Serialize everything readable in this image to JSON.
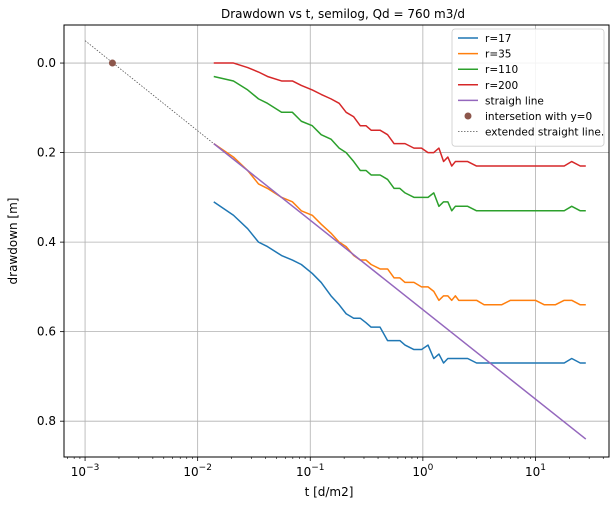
{
  "chart_data": {
    "type": "line",
    "title": "Drawdown vs t, semilog, Qd = 760 m3/d",
    "xlabel": "t [d/m2]",
    "ylabel": "drawdown [m]",
    "xscale": "log",
    "xlim": [
      0.00065,
      45
    ],
    "ylim": [
      0.88,
      -0.085
    ],
    "y_inverted": true,
    "grid": true,
    "legend_position": "upper right",
    "x_ticks": [
      {
        "value": 0.001,
        "base": "10",
        "exp": "−3"
      },
      {
        "value": 0.01,
        "base": "10",
        "exp": "−2"
      },
      {
        "value": 0.1,
        "base": "10",
        "exp": "−1"
      },
      {
        "value": 1,
        "base": "10",
        "exp": "0"
      },
      {
        "value": 10,
        "base": "10",
        "exp": "1"
      }
    ],
    "y_ticks": [
      {
        "value": 0.0,
        "label": "0.0"
      },
      {
        "value": 0.2,
        "label": "0.2"
      },
      {
        "value": 0.4,
        "label": "0.4"
      },
      {
        "value": 0.6,
        "label": "0.6"
      },
      {
        "value": 0.8,
        "label": "0.8"
      }
    ],
    "colors": {
      "r17": "#1f77b4",
      "r35": "#ff7f0e",
      "r110": "#2ca02c",
      "r200": "#d62728",
      "straight": "#9467bd",
      "intersection": "#8c564b",
      "extended": "#555555"
    },
    "series": [
      {
        "name": "r=17",
        "color": "#1f77b4",
        "x": [
          0.0139,
          0.0208,
          0.0278,
          0.0347,
          0.0417,
          0.0556,
          0.0694,
          0.0833,
          0.1042,
          0.125,
          0.1528,
          0.1806,
          0.2083,
          0.2431,
          0.2778,
          0.3125,
          0.3472,
          0.4167,
          0.4861,
          0.5556,
          0.625,
          0.6944,
          0.8333,
          0.9722,
          1.1111,
          1.25,
          1.3889,
          1.5278,
          1.6667,
          1.8056,
          1.9444,
          2.0833,
          2.2222,
          2.5,
          3.0,
          3.5,
          4.0,
          5.0,
          6.0,
          7.0,
          8.0,
          10.0,
          12.0,
          15.0,
          18.0,
          21.0,
          25.0,
          28.0
        ],
        "y": [
          0.31,
          0.34,
          0.37,
          0.4,
          0.41,
          0.43,
          0.44,
          0.45,
          0.47,
          0.49,
          0.52,
          0.54,
          0.56,
          0.57,
          0.57,
          0.58,
          0.59,
          0.59,
          0.62,
          0.62,
          0.62,
          0.63,
          0.64,
          0.64,
          0.63,
          0.66,
          0.65,
          0.67,
          0.66,
          0.66,
          0.66,
          0.66,
          0.66,
          0.66,
          0.67,
          0.67,
          0.67,
          0.67,
          0.67,
          0.67,
          0.67,
          0.67,
          0.67,
          0.67,
          0.67,
          0.66,
          0.67,
          0.67
        ]
      },
      {
        "name": "r=35",
        "color": "#ff7f0e",
        "x": [
          0.0139,
          0.0208,
          0.0278,
          0.0347,
          0.0417,
          0.0556,
          0.0694,
          0.0833,
          0.1042,
          0.125,
          0.1528,
          0.1806,
          0.2083,
          0.2431,
          0.2778,
          0.3125,
          0.3472,
          0.4167,
          0.4861,
          0.5556,
          0.625,
          0.6944,
          0.8333,
          0.9722,
          1.1111,
          1.25,
          1.3889,
          1.5278,
          1.6667,
          1.8056,
          1.9444,
          2.0833,
          2.2222,
          2.5,
          3.0,
          3.5,
          4.0,
          5.0,
          6.0,
          7.0,
          8.0,
          10.0,
          12.0,
          15.0,
          18.0,
          21.0,
          25.0,
          28.0
        ],
        "y": [
          0.18,
          0.21,
          0.24,
          0.27,
          0.28,
          0.3,
          0.31,
          0.33,
          0.34,
          0.36,
          0.38,
          0.4,
          0.41,
          0.43,
          0.44,
          0.44,
          0.45,
          0.46,
          0.46,
          0.48,
          0.48,
          0.49,
          0.49,
          0.5,
          0.5,
          0.51,
          0.53,
          0.52,
          0.52,
          0.53,
          0.52,
          0.53,
          0.53,
          0.53,
          0.53,
          0.54,
          0.54,
          0.54,
          0.53,
          0.53,
          0.53,
          0.53,
          0.54,
          0.54,
          0.53,
          0.53,
          0.54,
          0.54
        ]
      },
      {
        "name": "r=110",
        "color": "#2ca02c",
        "x": [
          0.0139,
          0.0208,
          0.0278,
          0.0347,
          0.0417,
          0.0556,
          0.0694,
          0.0833,
          0.1042,
          0.125,
          0.1528,
          0.1806,
          0.2083,
          0.2431,
          0.2778,
          0.3125,
          0.3472,
          0.4167,
          0.4861,
          0.5556,
          0.625,
          0.6944,
          0.8333,
          0.9722,
          1.1111,
          1.25,
          1.3889,
          1.5278,
          1.6667,
          1.8056,
          1.9444,
          2.0833,
          2.2222,
          2.5,
          3.0,
          3.5,
          4.0,
          5.0,
          6.0,
          7.0,
          8.0,
          10.0,
          12.0,
          15.0,
          18.0,
          21.0,
          25.0,
          28.0
        ],
        "y": [
          0.03,
          0.04,
          0.06,
          0.08,
          0.09,
          0.11,
          0.11,
          0.13,
          0.14,
          0.16,
          0.17,
          0.19,
          0.2,
          0.22,
          0.24,
          0.24,
          0.25,
          0.25,
          0.26,
          0.28,
          0.28,
          0.29,
          0.3,
          0.3,
          0.3,
          0.29,
          0.32,
          0.31,
          0.31,
          0.33,
          0.32,
          0.32,
          0.32,
          0.32,
          0.33,
          0.33,
          0.33,
          0.33,
          0.33,
          0.33,
          0.33,
          0.33,
          0.33,
          0.33,
          0.33,
          0.32,
          0.33,
          0.33
        ]
      },
      {
        "name": "r=200",
        "color": "#d62728",
        "x": [
          0.0139,
          0.0208,
          0.0278,
          0.0347,
          0.0417,
          0.0556,
          0.0694,
          0.0833,
          0.1042,
          0.125,
          0.1528,
          0.1806,
          0.2083,
          0.2431,
          0.2778,
          0.3125,
          0.3472,
          0.4167,
          0.4861,
          0.5556,
          0.625,
          0.6944,
          0.8333,
          0.9722,
          1.1111,
          1.25,
          1.3889,
          1.5278,
          1.6667,
          1.8056,
          1.9444,
          2.0833,
          2.2222,
          2.5,
          3.0,
          3.5,
          4.0,
          5.0,
          6.0,
          7.0,
          8.0,
          10.0,
          12.0,
          15.0,
          18.0,
          21.0,
          25.0,
          28.0
        ],
        "y": [
          0.0,
          0.0,
          0.01,
          0.02,
          0.03,
          0.04,
          0.04,
          0.05,
          0.06,
          0.07,
          0.08,
          0.09,
          0.11,
          0.12,
          0.14,
          0.14,
          0.15,
          0.15,
          0.16,
          0.18,
          0.18,
          0.18,
          0.19,
          0.19,
          0.2,
          0.2,
          0.19,
          0.22,
          0.21,
          0.23,
          0.22,
          0.22,
          0.22,
          0.22,
          0.23,
          0.23,
          0.23,
          0.23,
          0.23,
          0.23,
          0.23,
          0.23,
          0.23,
          0.23,
          0.23,
          0.22,
          0.23,
          0.23
        ]
      },
      {
        "name": "straigh line",
        "color": "#9467bd",
        "x": [
          0.0139,
          28.0
        ],
        "y": [
          0.18,
          0.84
        ]
      },
      {
        "name": "intersetion with y=0",
        "color": "#8c564b",
        "marker": "point",
        "x": [
          0.00175
        ],
        "y": [
          0.0
        ]
      },
      {
        "name": "extended straight line.",
        "color": "#555555",
        "style": "dotted",
        "x": [
          0.001,
          0.0139
        ],
        "y": [
          -0.05,
          0.18
        ]
      }
    ]
  }
}
